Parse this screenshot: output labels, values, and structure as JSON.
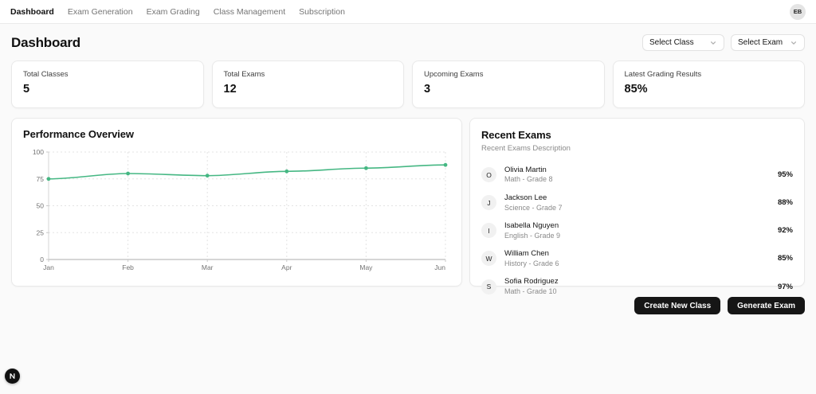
{
  "nav": {
    "items": [
      {
        "label": "Dashboard",
        "active": true
      },
      {
        "label": "Exam Generation",
        "active": false
      },
      {
        "label": "Exam Grading",
        "active": false
      },
      {
        "label": "Class Management",
        "active": false
      },
      {
        "label": "Subscription",
        "active": false
      }
    ],
    "avatar_initials": "EB"
  },
  "header": {
    "title": "Dashboard",
    "selects": [
      {
        "value": "Select Class"
      },
      {
        "value": "Select Exam"
      }
    ]
  },
  "stats": [
    {
      "label": "Total Classes",
      "value": "5"
    },
    {
      "label": "Total Exams",
      "value": "12"
    },
    {
      "label": "Upcoming Exams",
      "value": "3"
    },
    {
      "label": "Latest Grading Results",
      "value": "85%"
    }
  ],
  "chart_data": {
    "type": "line",
    "title": "Performance Overview",
    "categories": [
      "Jan",
      "Feb",
      "Mar",
      "Apr",
      "May",
      "Jun"
    ],
    "series": [
      {
        "name": "Performance",
        "values": [
          75,
          80,
          78,
          82,
          85,
          88
        ]
      }
    ],
    "xlabel": "",
    "ylabel": "",
    "ylim": [
      0,
      100
    ],
    "yticks": [
      0,
      25,
      50,
      75,
      100
    ],
    "grid": true,
    "legend": false,
    "line_color": "#45b783"
  },
  "recent_exams": {
    "title": "Recent Exams",
    "subtitle": "Recent Exams Description",
    "items": [
      {
        "initial": "O",
        "name": "Olivia Martin",
        "detail": "Math - Grade 8",
        "score": "95%"
      },
      {
        "initial": "J",
        "name": "Jackson Lee",
        "detail": "Science - Grade 7",
        "score": "88%"
      },
      {
        "initial": "I",
        "name": "Isabella Nguyen",
        "detail": "English - Grade 9",
        "score": "92%"
      },
      {
        "initial": "W",
        "name": "William Chen",
        "detail": "History - Grade 6",
        "score": "85%"
      },
      {
        "initial": "S",
        "name": "Sofia Rodriguez",
        "detail": "Math - Grade 10",
        "score": "97%"
      }
    ]
  },
  "actions": [
    {
      "label": "Create New Class"
    },
    {
      "label": "Generate Exam"
    }
  ],
  "colors": {
    "accent_green": "#45b783",
    "button_bg": "#161616",
    "page_bg": "#fafafa"
  }
}
